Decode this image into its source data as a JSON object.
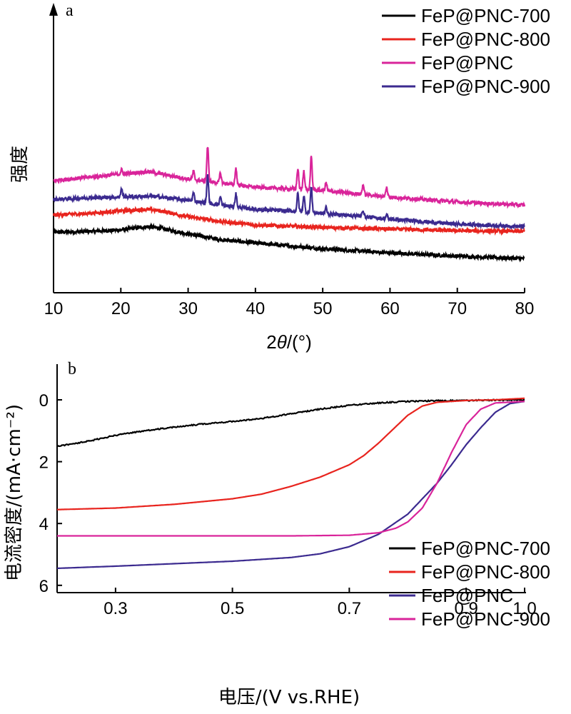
{
  "chart_data": [
    {
      "type": "line",
      "panel_label": "a",
      "xlabel_prefix": "2",
      "xlabel_theta": "θ",
      "xlabel_suffix": "/(°)",
      "ylabel": "强度",
      "xlim": [
        10,
        80
      ],
      "x_ticks": [
        "10",
        "20",
        "30",
        "40",
        "50",
        "60",
        "70",
        "80"
      ],
      "y_ticks_shown": false,
      "legend_position": "top-right",
      "series": [
        {
          "name": "FeP@PNC-700",
          "color": "#000000",
          "offset": 0,
          "x": [
            10,
            15,
            20,
            24,
            26,
            30,
            35,
            40,
            50,
            60,
            70,
            80
          ],
          "y": [
            0.4,
            0.5,
            0.7,
            1.1,
            0.9,
            0.2,
            -0.5,
            -0.9,
            -1.6,
            -2.1,
            -2.5,
            -2.8
          ]
        },
        {
          "name": "FeP@PNC-800",
          "color": "#e8241e",
          "offset": 2.1,
          "x": [
            10,
            15,
            20,
            24,
            26,
            30,
            35,
            40,
            50,
            60,
            70,
            80
          ],
          "y": [
            0.4,
            0.6,
            0.9,
            1.1,
            0.9,
            0.2,
            -0.4,
            -0.8,
            -1.1,
            -1.3,
            -1.5,
            -1.6
          ]
        },
        {
          "name": "FeP@PNC",
          "color": "#d9249a",
          "offset": 6.3,
          "x": [
            10,
            15,
            20,
            24,
            26,
            30,
            35,
            40,
            45,
            50,
            55,
            60,
            70,
            80
          ],
          "y": [
            0.4,
            0.8,
            1.2,
            1.5,
            1.2,
            0.6,
            0.1,
            -0.4,
            -0.6,
            -0.8,
            -1.2,
            -1.6,
            -2.2,
            -2.6
          ],
          "peaks": [
            [
              20.1,
              0.5
            ],
            [
              30.8,
              1.0
            ],
            [
              32.9,
              4.2
            ],
            [
              34.8,
              1.2
            ],
            [
              37.1,
              2.0
            ],
            [
              46.3,
              2.5
            ],
            [
              47.2,
              2.3
            ],
            [
              48.3,
              4.0
            ],
            [
              50.5,
              1.0
            ],
            [
              56.0,
              1.2
            ],
            [
              59.5,
              1.1
            ]
          ]
        },
        {
          "name": "FeP@PNC-900",
          "color": "#3b2a8f",
          "offset": 4.0,
          "x": [
            10,
            15,
            20,
            24,
            26,
            30,
            35,
            40,
            45,
            50,
            55,
            60,
            70,
            80
          ],
          "y": [
            0.4,
            0.6,
            0.7,
            0.8,
            0.7,
            0.3,
            -0.3,
            -0.8,
            -1.0,
            -1.3,
            -1.6,
            -2.0,
            -2.6,
            -2.9
          ],
          "peaks": [
            [
              20.1,
              1.0
            ],
            [
              30.8,
              1.0
            ],
            [
              32.9,
              3.4
            ],
            [
              34.8,
              1.0
            ],
            [
              37.1,
              1.6
            ],
            [
              46.3,
              2.2
            ],
            [
              47.2,
              2.0
            ],
            [
              48.3,
              3.1
            ],
            [
              50.5,
              0.7
            ],
            [
              56.0,
              0.8
            ],
            [
              59.5,
              0.5
            ]
          ]
        }
      ]
    },
    {
      "type": "line",
      "panel_label": "b",
      "xlabel": "电压/(V vs.RHE)",
      "ylabel": "电流密度/(mA·cm⁻²)",
      "xlim": [
        0.2,
        1.0
      ],
      "ylim": [
        6,
        -0.8
      ],
      "x_ticks": [
        "0.3",
        "0.5",
        "0.7",
        "0.9",
        "1.0"
      ],
      "x_tick_values": [
        0.3,
        0.5,
        0.7,
        0.9,
        1.0
      ],
      "y_ticks": [
        "0",
        "2",
        "4",
        "6"
      ],
      "y_tick_values": [
        0,
        2,
        4,
        6
      ],
      "legend_position": "bottom-right",
      "series": [
        {
          "name": "FeP@PNC-700",
          "color": "#000000",
          "x": [
            0.2,
            0.25,
            0.3,
            0.35,
            0.4,
            0.45,
            0.5,
            0.55,
            0.6,
            0.65,
            0.7,
            0.75,
            0.8,
            0.85,
            0.9,
            1.0
          ],
          "y": [
            1.5,
            1.35,
            1.15,
            1.0,
            0.88,
            0.78,
            0.7,
            0.6,
            0.45,
            0.3,
            0.18,
            0.1,
            0.05,
            0.03,
            0.02,
            0.0
          ]
        },
        {
          "name": "FeP@PNC-800",
          "color": "#e8241e",
          "x": [
            0.2,
            0.3,
            0.4,
            0.5,
            0.55,
            0.6,
            0.65,
            0.7,
            0.725,
            0.75,
            0.775,
            0.8,
            0.825,
            0.85,
            0.9,
            0.95,
            1.0
          ],
          "y": [
            3.55,
            3.5,
            3.38,
            3.2,
            3.05,
            2.8,
            2.5,
            2.1,
            1.8,
            1.4,
            0.95,
            0.5,
            0.2,
            0.08,
            0.02,
            0.0,
            -0.05
          ]
        },
        {
          "name": "FeP@PNC",
          "color": "#3b2a8f",
          "x": [
            0.2,
            0.3,
            0.4,
            0.5,
            0.6,
            0.65,
            0.7,
            0.75,
            0.8,
            0.85,
            0.875,
            0.9,
            0.925,
            0.95,
            0.975,
            1.0
          ],
          "y": [
            5.45,
            5.38,
            5.3,
            5.22,
            5.1,
            4.98,
            4.75,
            4.35,
            3.7,
            2.7,
            2.1,
            1.45,
            0.9,
            0.4,
            0.12,
            0.05
          ]
        },
        {
          "name": "FeP@PNC-900",
          "color": "#d9249a",
          "x": [
            0.2,
            0.3,
            0.4,
            0.5,
            0.6,
            0.7,
            0.75,
            0.78,
            0.8,
            0.825,
            0.85,
            0.875,
            0.9,
            0.925,
            0.95,
            1.0
          ],
          "y": [
            4.4,
            4.4,
            4.4,
            4.4,
            4.4,
            4.38,
            4.3,
            4.15,
            3.95,
            3.5,
            2.7,
            1.7,
            0.8,
            0.3,
            0.1,
            0.05
          ]
        }
      ]
    }
  ]
}
